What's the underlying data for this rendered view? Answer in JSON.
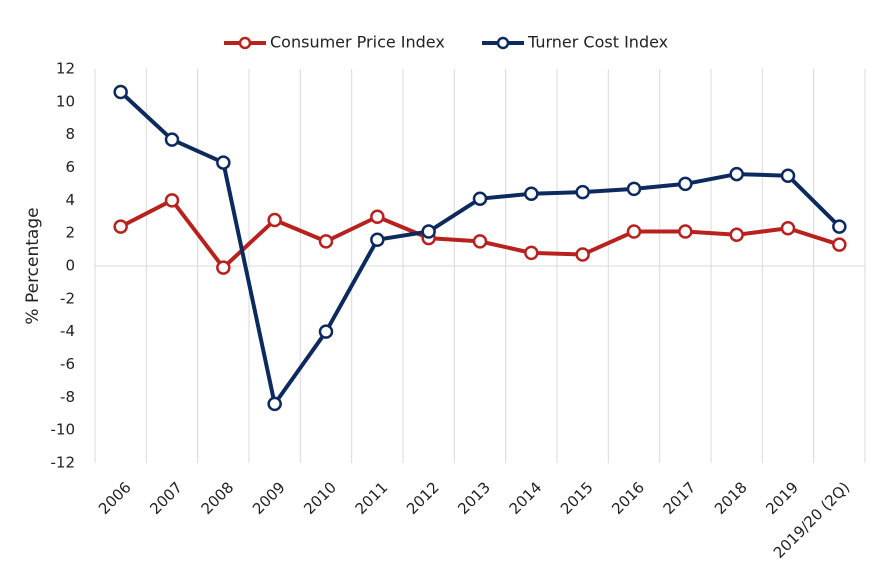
{
  "chart_data": {
    "type": "line",
    "y_label": "% Percentage",
    "categories": [
      "2006",
      "2007",
      "2008",
      "2009",
      "2010",
      "2011",
      "2012",
      "2013",
      "2014",
      "2015",
      "2016",
      "2017",
      "2018",
      "2019",
      "2019/20 (2Q)"
    ],
    "series": [
      {
        "name": "Consumer Price Index",
        "color": "#b7221e",
        "values": [
          2.4,
          4.0,
          -0.1,
          2.8,
          1.5,
          3.0,
          1.7,
          1.5,
          0.8,
          0.7,
          2.1,
          2.1,
          1.9,
          2.3,
          1.3
        ]
      },
      {
        "name": "Turner Cost Index",
        "color": "#0d2a5e",
        "values": [
          10.6,
          7.7,
          6.3,
          -8.4,
          -4.0,
          1.6,
          2.1,
          4.1,
          4.4,
          4.5,
          4.7,
          5.0,
          5.6,
          5.5,
          2.4
        ]
      }
    ],
    "ylim": [
      -12,
      12
    ],
    "yticks": [
      -12,
      -10,
      -8,
      -6,
      -4,
      -2,
      0,
      2,
      4,
      6,
      8,
      10,
      12
    ],
    "legend": "top"
  }
}
